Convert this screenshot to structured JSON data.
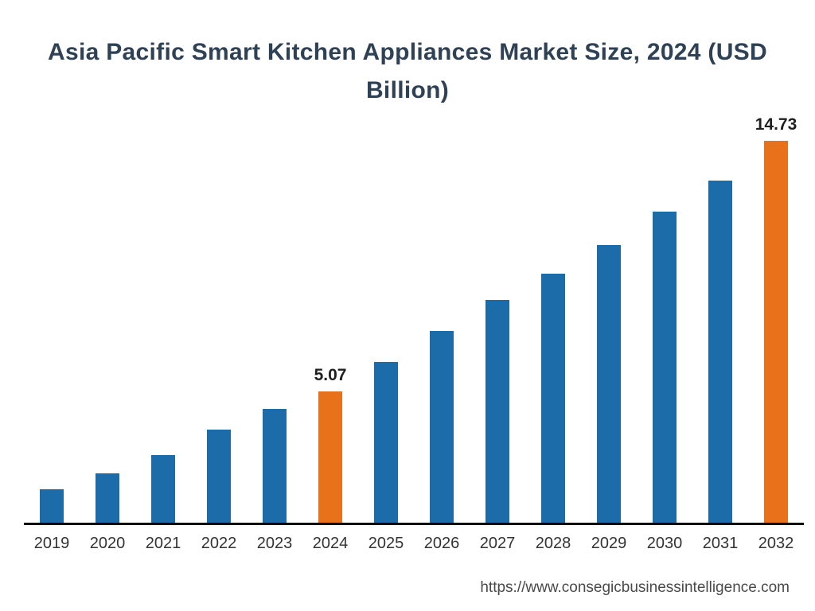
{
  "title": {
    "text": "Asia Pacific Smart Kitchen Appliances Market Size, 2024 (USD Billion)"
  },
  "footer": {
    "url": "https://www.consegicbusinessintelligence.com"
  },
  "colors": {
    "bar_default": "#1B6CA8",
    "bar_highlight": "#E8711C",
    "axis": "#000000",
    "title": "#2F4154",
    "tick": "#333333",
    "value_label": "#1F1F1F"
  },
  "chart_data": {
    "type": "bar",
    "title": "Asia Pacific Smart Kitchen Appliances Market Size, 2024 (USD Billion)",
    "categories": [
      "2019",
      "2020",
      "2021",
      "2022",
      "2023",
      "2024",
      "2025",
      "2026",
      "2027",
      "2028",
      "2029",
      "2030",
      "2031",
      "2032"
    ],
    "values": [
      1.3,
      1.9,
      2.6,
      3.6,
      4.4,
      5.07,
      6.2,
      7.4,
      8.6,
      9.6,
      10.7,
      12.0,
      13.2,
      14.73
    ],
    "highlighted_categories": [
      "2024",
      "2032"
    ],
    "data_labels": {
      "2024": "5.07",
      "2032": "14.73"
    },
    "xlabel": "",
    "ylabel": "",
    "ylim": [
      0,
      14.73
    ],
    "grid": false,
    "legend": false,
    "y_axis_visible": false,
    "x_axis_visible": true
  }
}
